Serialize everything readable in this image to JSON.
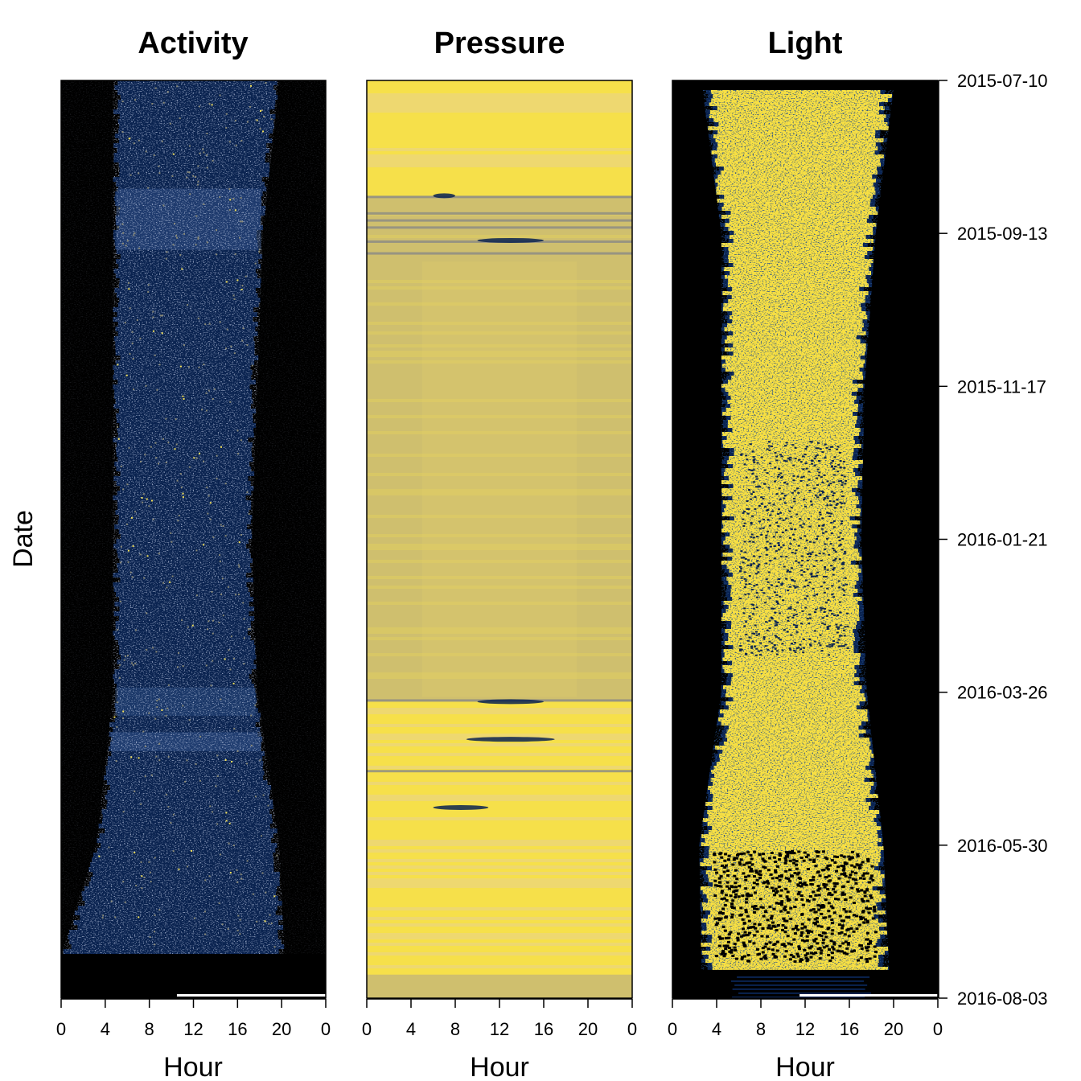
{
  "chart_data": [
    {
      "type": "heatmap",
      "title": "Activity",
      "xlabel": "Hour",
      "ylabel": "Date",
      "x_ticks": [
        "0",
        "4",
        "8",
        "12",
        "16",
        "20",
        "0"
      ],
      "y_ticks": [
        "2015-07-10",
        "2015-09-13",
        "2015-11-17",
        "2016-01-21",
        "2016-03-26",
        "2016-05-30",
        "2016-08-03"
      ],
      "date_range": [
        "2015-07-10",
        "2016-08-03"
      ],
      "hour_range": [
        0,
        24
      ],
      "colors": {
        "background": "#000000",
        "low": "#0a2350",
        "mid": "#2f4f85",
        "high": "#8a8a78",
        "peak": "#f2e05a"
      },
      "day_window_hours": [
        {
          "date": "2015-07-10",
          "start": 5.0,
          "end": 19.5
        },
        {
          "date": "2015-09-13",
          "start": 5.0,
          "end": 18.0
        },
        {
          "date": "2015-11-17",
          "start": 5.0,
          "end": 17.5
        },
        {
          "date": "2016-01-21",
          "start": 5.0,
          "end": 17.0
        },
        {
          "date": "2016-03-26",
          "start": 5.0,
          "end": 17.5
        },
        {
          "date": "2016-05-30",
          "start": 3.5,
          "end": 19.5
        },
        {
          "date": "2016-07-20",
          "start": 0.0,
          "end": 20.0
        }
      ]
    },
    {
      "type": "heatmap",
      "title": "Pressure",
      "xlabel": "Hour",
      "x_ticks": [
        "0",
        "4",
        "8",
        "12",
        "16",
        "20",
        "0"
      ],
      "date_range": [
        "2015-07-10",
        "2016-08-03"
      ],
      "hour_range": [
        0,
        24
      ],
      "colors": {
        "high": "#f6e04a",
        "mid": "#cfbf6e",
        "low": "#0a2350"
      },
      "low_pressure_bands": [
        {
          "date": "2015-08-28",
          "hour_start": 6.0,
          "hour_end": 8.0
        },
        {
          "date": "2015-09-16",
          "hour_start": 10.0,
          "hour_end": 16.0
        },
        {
          "date": "2016-03-30",
          "hour_start": 10.0,
          "hour_end": 16.0
        },
        {
          "date": "2016-04-15",
          "hour_start": 9.0,
          "hour_end": 17.0
        },
        {
          "date": "2016-05-14",
          "hour_start": 6.0,
          "hour_end": 11.0
        }
      ]
    },
    {
      "type": "heatmap",
      "title": "Light",
      "xlabel": "Hour",
      "x_ticks": [
        "0",
        "4",
        "8",
        "12",
        "16",
        "20",
        "0"
      ],
      "date_range": [
        "2015-07-10",
        "2016-08-03"
      ],
      "hour_range": [
        0,
        24
      ],
      "colors": {
        "background": "#000000",
        "edge": "#0a2350",
        "light": "#f8e043"
      },
      "day_window_hours": [
        {
          "date": "2015-07-10",
          "start": 3.2,
          "end": 19.5
        },
        {
          "date": "2015-09-13",
          "start": 5.0,
          "end": 17.8
        },
        {
          "date": "2015-11-17",
          "start": 5.0,
          "end": 16.8
        },
        {
          "date": "2016-01-21",
          "start": 5.0,
          "end": 16.5
        },
        {
          "date": "2016-03-26",
          "start": 5.0,
          "end": 17.0
        },
        {
          "date": "2016-05-30",
          "start": 3.0,
          "end": 18.5
        },
        {
          "date": "2016-07-20",
          "start": 3.2,
          "end": 19.0
        }
      ]
    }
  ]
}
